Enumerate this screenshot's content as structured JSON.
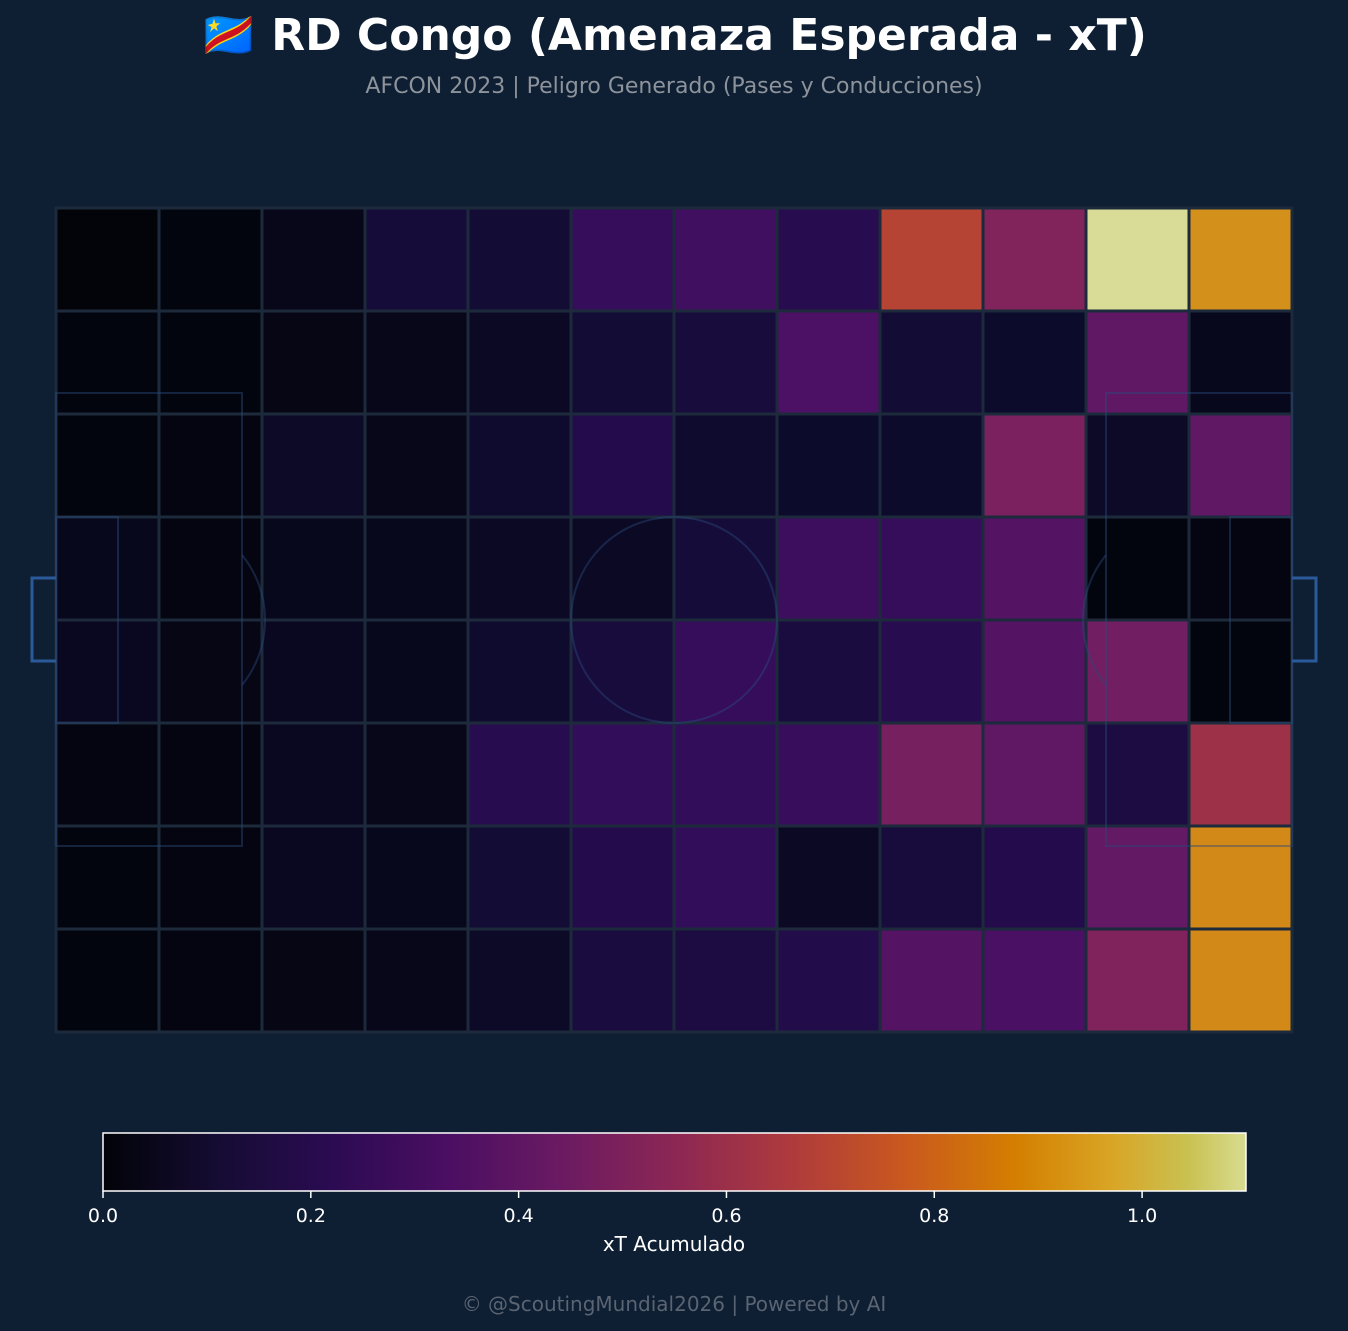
{
  "header": {
    "title": "🇨🇩 RD Congo (Amenaza Esperada - xT)",
    "subtitle": "AFCON 2023 | Peligro Generado (Pases y Conducciones)"
  },
  "footer": {
    "credit": "© @ScoutingMundial2026 | Powered by AI"
  },
  "colors": {
    "background": "#0e1e33",
    "grid_line": "#1c2a3c",
    "pitch_line": "#2a5a9a",
    "colormap": "inferno"
  },
  "chart_data": {
    "type": "heatmap",
    "title": "🇨🇩 RD Congo (Amenaza Esperada - xT)",
    "subtitle": "AFCON 2023 | Peligro Generado (Pases y Conducciones)",
    "grid": {
      "columns": 12,
      "rows": 8
    },
    "values": [
      [
        0.0,
        0.01,
        0.04,
        0.13,
        0.12,
        0.25,
        0.29,
        0.2,
        0.7,
        0.53,
        1.1,
        0.92
      ],
      [
        0.01,
        0.01,
        0.03,
        0.04,
        0.07,
        0.12,
        0.14,
        0.33,
        0.12,
        0.09,
        0.4,
        0.05
      ],
      [
        0.01,
        0.02,
        0.08,
        0.04,
        0.1,
        0.19,
        0.1,
        0.09,
        0.09,
        0.5,
        0.08,
        0.4
      ],
      [
        0.05,
        0.02,
        0.05,
        0.05,
        0.07,
        0.07,
        0.13,
        0.28,
        0.25,
        0.36,
        0.01,
        0.02
      ],
      [
        0.06,
        0.03,
        0.06,
        0.05,
        0.1,
        0.14,
        0.25,
        0.15,
        0.2,
        0.36,
        0.46,
        0.01
      ],
      [
        0.02,
        0.02,
        0.06,
        0.04,
        0.2,
        0.24,
        0.24,
        0.26,
        0.48,
        0.4,
        0.16,
        0.62
      ],
      [
        0.01,
        0.02,
        0.06,
        0.05,
        0.12,
        0.19,
        0.24,
        0.07,
        0.14,
        0.19,
        0.41,
        0.9
      ],
      [
        0.01,
        0.02,
        0.03,
        0.04,
        0.08,
        0.15,
        0.16,
        0.18,
        0.36,
        0.32,
        0.52,
        0.9
      ]
    ],
    "colorbar": {
      "label": "xT Acumulado",
      "range": [
        0.0,
        1.1
      ],
      "ticks": [
        0.0,
        0.2,
        0.4,
        0.6,
        0.8,
        1.0
      ],
      "tick_labels": [
        "0.0",
        "0.2",
        "0.4",
        "0.6",
        "0.8",
        "1.0"
      ]
    }
  }
}
